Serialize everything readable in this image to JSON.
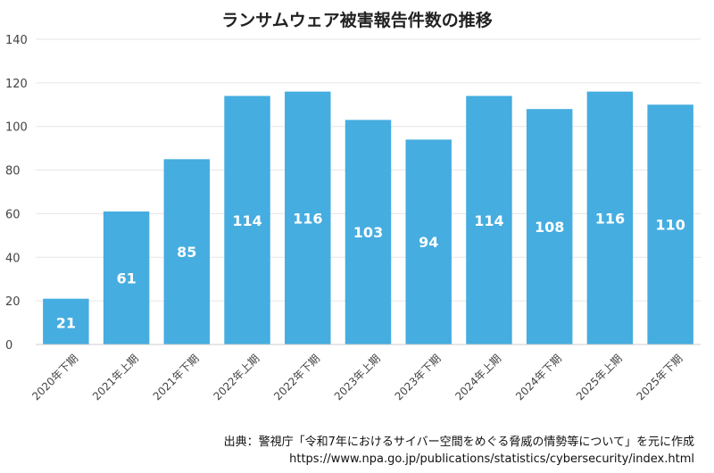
{
  "chart_data": {
    "type": "bar",
    "title": "ランサムウェア被害報告件数の推移",
    "categories": [
      "2020年下期",
      "2021年上期",
      "2021年下期",
      "2022年上期",
      "2022年下期",
      "2023年上期",
      "2023年下期",
      "2024年上期",
      "2024年下期",
      "2025年上期",
      "2025年下期"
    ],
    "values": [
      21,
      61,
      85,
      114,
      116,
      103,
      94,
      114,
      108,
      116,
      110
    ],
    "yticks": [
      "0",
      "20",
      "40",
      "60",
      "80",
      "100",
      "120",
      "140"
    ],
    "ylim": [
      0,
      140
    ],
    "xlabel": "",
    "ylabel": "",
    "grid": true,
    "bar_color": "#45ADE0",
    "data_label_color": "#ffffff"
  },
  "source": {
    "line1": "出典：警視庁「令和7年におけるサイバー空間をめぐる脅威の情勢等について」を元に作成",
    "line2": "https://www.npa.go.jp/publications/statistics/cybersecurity/index.html"
  }
}
